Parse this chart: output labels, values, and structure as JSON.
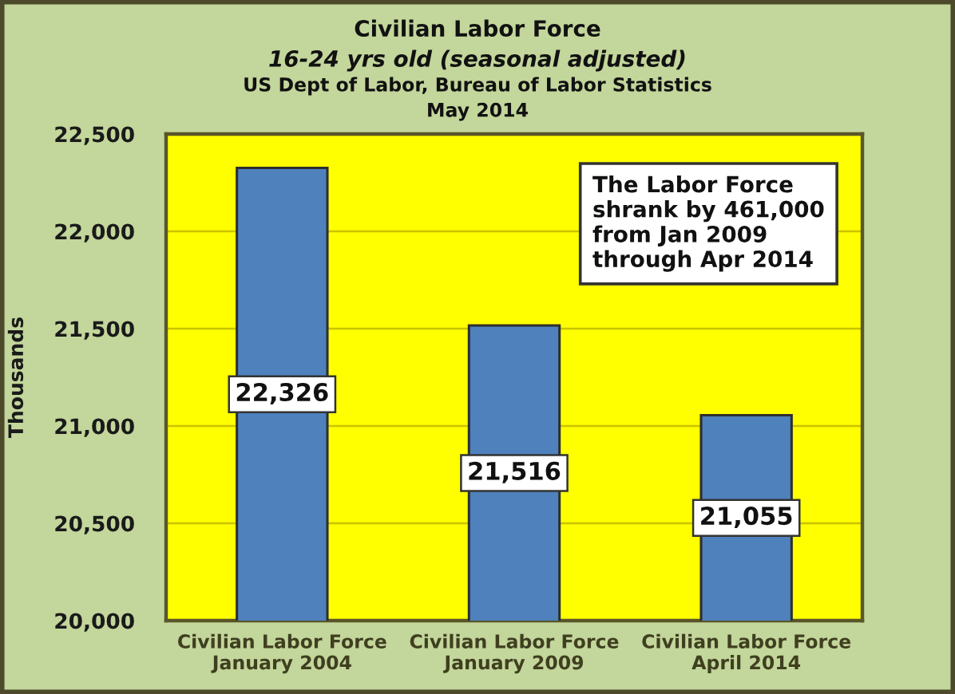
{
  "chart_data": {
    "type": "bar",
    "title": "Civilian Labor Force",
    "subtitle": "16-24 yrs old (seasonal adjusted)",
    "ylabel": "Thousands",
    "annotations": [
      "US Dept of Labor, Bureau of Labor Statistics",
      "May 2014",
      "The Labor Force\nshrank by 461,000\nfrom Jan 2009\nthrough Apr 2014"
    ],
    "categories": [
      "Civilian Labor Force\nJanuary 2004",
      "Civilian Labor Force\nJanuary 2009",
      "Civilian Labor Force\nApril 2014"
    ],
    "values": [
      22326,
      21516,
      21055
    ],
    "color": "#4f81bd",
    "value_labels": [
      "22,326",
      "21,516",
      "21,055"
    ],
    "ylim": [
      20000,
      22500
    ],
    "yticks": [
      {
        "value": 20000,
        "label": "20,000"
      },
      {
        "value": 20500,
        "label": "20,500"
      },
      {
        "value": 21000,
        "label": "21,000"
      },
      {
        "value": 21500,
        "label": "21,500"
      },
      {
        "value": 22000,
        "label": "22,000"
      },
      {
        "value": 22500,
        "label": "22,500"
      }
    ],
    "grid": "y"
  }
}
